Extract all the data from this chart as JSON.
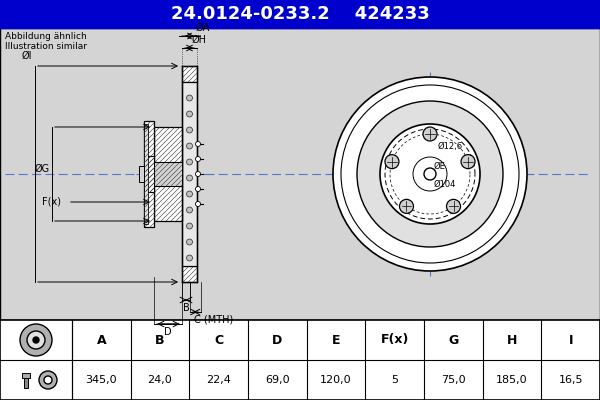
{
  "title_text": "24.0124-0233.2    424233",
  "title_bg": "#0000cc",
  "title_fg": "#ffffff",
  "title_fontsize": 13,
  "subtitle1": "Abbildung ähnlich",
  "subtitle2": "Illustration similar",
  "subtitle_fontsize": 6.5,
  "bg_color": "#c8c8c8",
  "drawing_bg": "#d4d4d4",
  "table_headers": [
    "A",
    "B",
    "C",
    "D",
    "E",
    "F(x)",
    "G",
    "H",
    "I"
  ],
  "table_values": [
    "345,0",
    "24,0",
    "22,4",
    "69,0",
    "120,0",
    "5",
    "75,0",
    "185,0",
    "16,5"
  ],
  "table_bg": "#ffffff",
  "table_header_fontsize": 9,
  "table_value_fontsize": 8,
  "label_I": "ØI",
  "label_G": "ØG",
  "label_Fx": "F(x)",
  "label_H": "ØH",
  "label_A": "ØA",
  "label_B": "B",
  "label_C": "C (MTH)",
  "label_D": "D",
  "label_E": "ØE",
  "label_104": "Ø104",
  "label_126": "Ø12,6"
}
